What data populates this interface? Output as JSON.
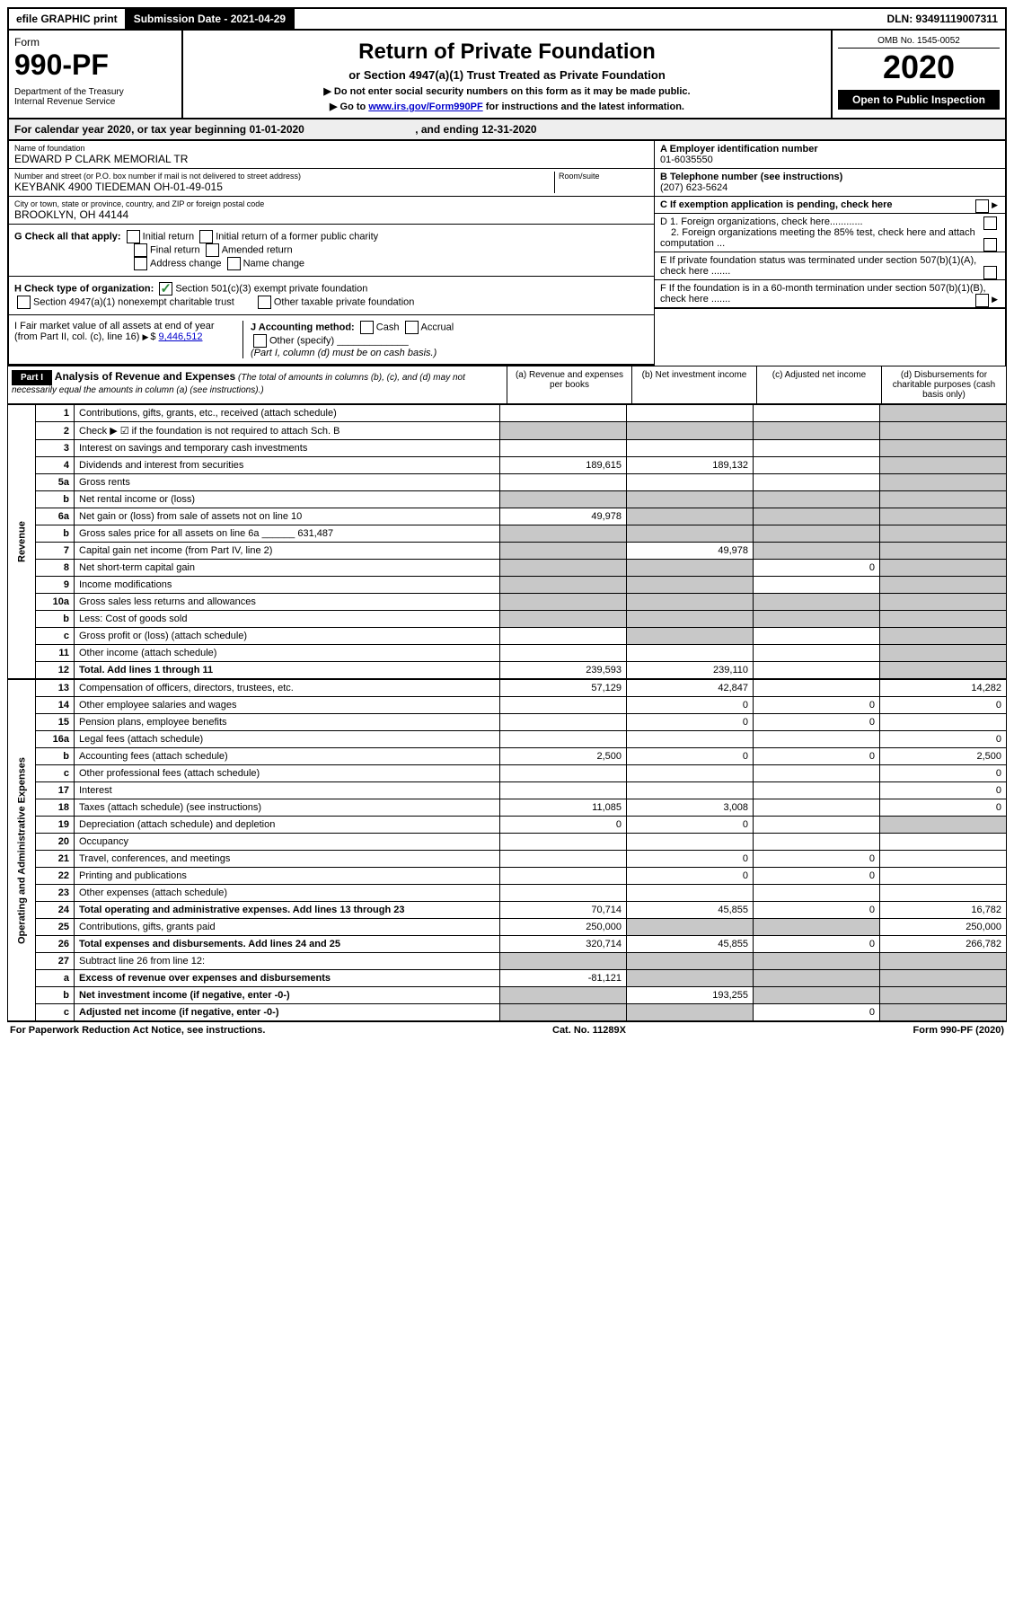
{
  "topbar": {
    "efile": "efile GRAPHIC print",
    "submission": "Submission Date - 2021-04-29",
    "dln": "DLN: 93491119007311"
  },
  "header": {
    "form_label": "Form",
    "form_number": "990-PF",
    "dept": "Department of the Treasury",
    "irs": "Internal Revenue Service",
    "title": "Return of Private Foundation",
    "subtitle": "or Section 4947(a)(1) Trust Treated as Private Foundation",
    "note1": "▶ Do not enter social security numbers on this form as it may be made public.",
    "note2_pre": "▶ Go to ",
    "note2_link": "www.irs.gov/Form990PF",
    "note2_post": " for instructions and the latest information.",
    "omb": "OMB No. 1545-0052",
    "year": "2020",
    "open": "Open to Public Inspection"
  },
  "calyear": {
    "text_pre": "For calendar year 2020, or tax year beginning ",
    "begin": "01-01-2020",
    "mid": " , and ending ",
    "end": "12-31-2020"
  },
  "info": {
    "name_label": "Name of foundation",
    "name": "EDWARD P CLARK MEMORIAL TR",
    "addr_label": "Number and street (or P.O. box number if mail is not delivered to street address)",
    "addr": "KEYBANK 4900 TIEDEMAN OH-01-49-015",
    "room_label": "Room/suite",
    "city_label": "City or town, state or province, country, and ZIP or foreign postal code",
    "city": "BROOKLYN, OH  44144",
    "ein_label": "A Employer identification number",
    "ein": "01-6035550",
    "phone_label": "B Telephone number (see instructions)",
    "phone": "(207) 623-5624",
    "c_label": "C If exemption application is pending, check here",
    "d1": "D 1. Foreign organizations, check here............",
    "d2": "2. Foreign organizations meeting the 85% test, check here and attach computation ...",
    "e": "E If private foundation status was terminated under section 507(b)(1)(A), check here .......",
    "f": "F If the foundation is in a 60-month termination under section 507(b)(1)(B), check here .......",
    "g_label": "G Check all that apply:",
    "g_opts": [
      "Initial return",
      "Initial return of a former public charity",
      "Final return",
      "Amended return",
      "Address change",
      "Name change"
    ],
    "h_label": "H Check type of organization:",
    "h_opt1": "Section 501(c)(3) exempt private foundation",
    "h_opt2": "Section 4947(a)(1) nonexempt charitable trust",
    "h_opt3": "Other taxable private foundation",
    "i_label": "I Fair market value of all assets at end of year (from Part II, col. (c), line 16)",
    "i_value": "9,446,512",
    "j_label": "J Accounting method:",
    "j_opts": [
      "Cash",
      "Accrual"
    ],
    "j_other": "Other (specify)",
    "j_note": "(Part I, column (d) must be on cash basis.)"
  },
  "part1": {
    "label": "Part I",
    "title": "Analysis of Revenue and Expenses",
    "note": "(The total of amounts in columns (b), (c), and (d) may not necessarily equal the amounts in column (a) (see instructions).)",
    "col_a": "(a) Revenue and expenses per books",
    "col_b": "(b) Net investment income",
    "col_c": "(c) Adjusted net income",
    "col_d": "(d) Disbursements for charitable purposes (cash basis only)"
  },
  "sections": {
    "revenue": "Revenue",
    "expenses": "Operating and Administrative Expenses"
  },
  "rows": [
    {
      "n": "1",
      "label": "Contributions, gifts, grants, etc., received (attach schedule)",
      "a": "",
      "b": "",
      "c": "",
      "d": "",
      "shade": [
        "d"
      ]
    },
    {
      "n": "2",
      "label": "Check ▶ ☑ if the foundation is not required to attach Sch. B",
      "a": "",
      "b": "",
      "c": "",
      "d": "",
      "shade": [
        "a",
        "b",
        "c",
        "d"
      ]
    },
    {
      "n": "3",
      "label": "Interest on savings and temporary cash investments",
      "a": "",
      "b": "",
      "c": "",
      "d": "",
      "shade": [
        "d"
      ]
    },
    {
      "n": "4",
      "label": "Dividends and interest from securities",
      "a": "189,615",
      "b": "189,132",
      "c": "",
      "d": "",
      "shade": [
        "d"
      ]
    },
    {
      "n": "5a",
      "label": "Gross rents",
      "a": "",
      "b": "",
      "c": "",
      "d": "",
      "shade": [
        "d"
      ]
    },
    {
      "n": "b",
      "label": "Net rental income or (loss)",
      "a": "",
      "b": "",
      "c": "",
      "d": "",
      "shade": [
        "a",
        "b",
        "c",
        "d"
      ]
    },
    {
      "n": "6a",
      "label": "Net gain or (loss) from sale of assets not on line 10",
      "a": "49,978",
      "b": "",
      "c": "",
      "d": "",
      "shade": [
        "b",
        "c",
        "d"
      ]
    },
    {
      "n": "b",
      "label": "Gross sales price for all assets on line 6a ______ 631,487",
      "a": "",
      "b": "",
      "c": "",
      "d": "",
      "shade": [
        "a",
        "b",
        "c",
        "d"
      ]
    },
    {
      "n": "7",
      "label": "Capital gain net income (from Part IV, line 2)",
      "a": "",
      "b": "49,978",
      "c": "",
      "d": "",
      "shade": [
        "a",
        "c",
        "d"
      ]
    },
    {
      "n": "8",
      "label": "Net short-term capital gain",
      "a": "",
      "b": "",
      "c": "0",
      "d": "",
      "shade": [
        "a",
        "b",
        "d"
      ]
    },
    {
      "n": "9",
      "label": "Income modifications",
      "a": "",
      "b": "",
      "c": "",
      "d": "",
      "shade": [
        "a",
        "b",
        "d"
      ]
    },
    {
      "n": "10a",
      "label": "Gross sales less returns and allowances",
      "a": "",
      "b": "",
      "c": "",
      "d": "",
      "shade": [
        "a",
        "b",
        "c",
        "d"
      ]
    },
    {
      "n": "b",
      "label": "Less: Cost of goods sold",
      "a": "",
      "b": "",
      "c": "",
      "d": "",
      "shade": [
        "a",
        "b",
        "c",
        "d"
      ]
    },
    {
      "n": "c",
      "label": "Gross profit or (loss) (attach schedule)",
      "a": "",
      "b": "",
      "c": "",
      "d": "",
      "shade": [
        "b",
        "d"
      ]
    },
    {
      "n": "11",
      "label": "Other income (attach schedule)",
      "a": "",
      "b": "",
      "c": "",
      "d": "",
      "shade": [
        "d"
      ]
    },
    {
      "n": "12",
      "label": "Total. Add lines 1 through 11",
      "bold": true,
      "a": "239,593",
      "b": "239,110",
      "c": "",
      "d": "",
      "shade": [
        "d"
      ]
    }
  ],
  "exp_rows": [
    {
      "n": "13",
      "label": "Compensation of officers, directors, trustees, etc.",
      "a": "57,129",
      "b": "42,847",
      "c": "",
      "d": "14,282"
    },
    {
      "n": "14",
      "label": "Other employee salaries and wages",
      "a": "",
      "b": "0",
      "c": "0",
      "d": "0"
    },
    {
      "n": "15",
      "label": "Pension plans, employee benefits",
      "a": "",
      "b": "0",
      "c": "0",
      "d": ""
    },
    {
      "n": "16a",
      "label": "Legal fees (attach schedule)",
      "a": "",
      "b": "",
      "c": "",
      "d": "0"
    },
    {
      "n": "b",
      "label": "Accounting fees (attach schedule)",
      "a": "2,500",
      "b": "0",
      "c": "0",
      "d": "2,500"
    },
    {
      "n": "c",
      "label": "Other professional fees (attach schedule)",
      "a": "",
      "b": "",
      "c": "",
      "d": "0"
    },
    {
      "n": "17",
      "label": "Interest",
      "a": "",
      "b": "",
      "c": "",
      "d": "0"
    },
    {
      "n": "18",
      "label": "Taxes (attach schedule) (see instructions)",
      "a": "11,085",
      "b": "3,008",
      "c": "",
      "d": "0"
    },
    {
      "n": "19",
      "label": "Depreciation (attach schedule) and depletion",
      "a": "0",
      "b": "0",
      "c": "",
      "d": "",
      "shade": [
        "d"
      ]
    },
    {
      "n": "20",
      "label": "Occupancy",
      "a": "",
      "b": "",
      "c": "",
      "d": ""
    },
    {
      "n": "21",
      "label": "Travel, conferences, and meetings",
      "a": "",
      "b": "0",
      "c": "0",
      "d": ""
    },
    {
      "n": "22",
      "label": "Printing and publications",
      "a": "",
      "b": "0",
      "c": "0",
      "d": ""
    },
    {
      "n": "23",
      "label": "Other expenses (attach schedule)",
      "a": "",
      "b": "",
      "c": "",
      "d": ""
    },
    {
      "n": "24",
      "label": "Total operating and administrative expenses. Add lines 13 through 23",
      "bold": true,
      "a": "70,714",
      "b": "45,855",
      "c": "0",
      "d": "16,782"
    },
    {
      "n": "25",
      "label": "Contributions, gifts, grants paid",
      "a": "250,000",
      "b": "",
      "c": "",
      "d": "250,000",
      "shade": [
        "b",
        "c"
      ]
    },
    {
      "n": "26",
      "label": "Total expenses and disbursements. Add lines 24 and 25",
      "bold": true,
      "a": "320,714",
      "b": "45,855",
      "c": "0",
      "d": "266,782"
    },
    {
      "n": "27",
      "label": "Subtract line 26 from line 12:",
      "a": "",
      "b": "",
      "c": "",
      "d": "",
      "shade": [
        "a",
        "b",
        "c",
        "d"
      ]
    },
    {
      "n": "a",
      "label": "Excess of revenue over expenses and disbursements",
      "bold": true,
      "a": "-81,121",
      "b": "",
      "c": "",
      "d": "",
      "shade": [
        "b",
        "c",
        "d"
      ]
    },
    {
      "n": "b",
      "label": "Net investment income (if negative, enter -0-)",
      "bold": true,
      "a": "",
      "b": "193,255",
      "c": "",
      "d": "",
      "shade": [
        "a",
        "c",
        "d"
      ]
    },
    {
      "n": "c",
      "label": "Adjusted net income (if negative, enter -0-)",
      "bold": true,
      "a": "",
      "b": "",
      "c": "0",
      "d": "",
      "shade": [
        "a",
        "b",
        "d"
      ]
    }
  ],
  "footer": {
    "left": "For Paperwork Reduction Act Notice, see instructions.",
    "mid": "Cat. No. 11289X",
    "right": "Form 990-PF (2020)"
  }
}
